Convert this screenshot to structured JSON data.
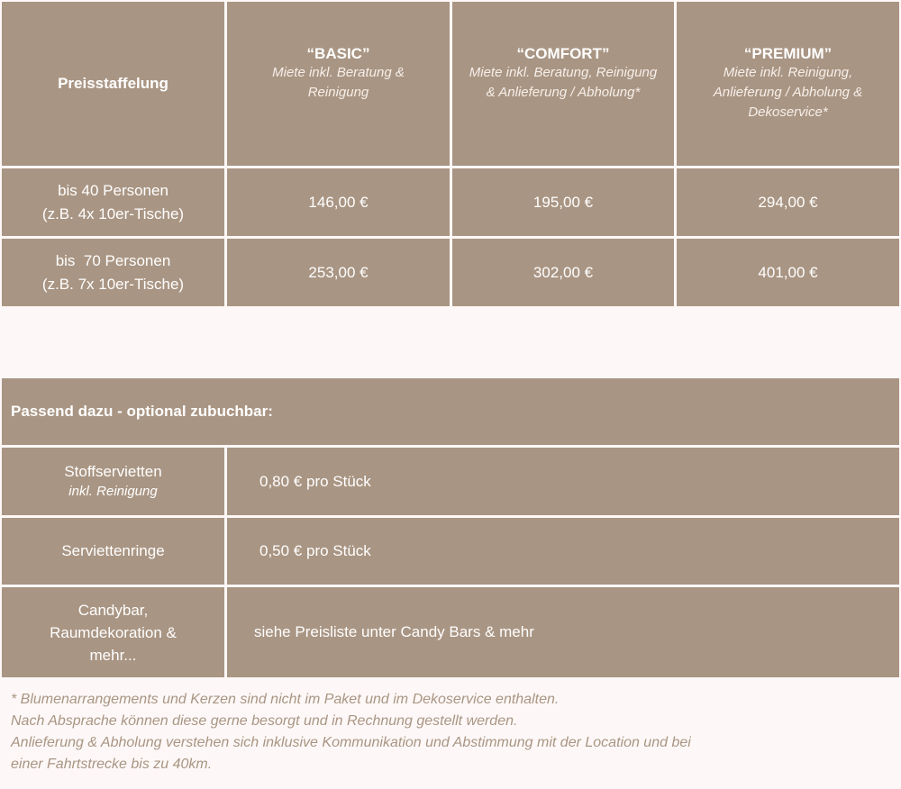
{
  "pricing_table": {
    "header": {
      "label": "Preisstaffelung",
      "packages": [
        {
          "name": "“BASIC”",
          "desc": "Miete inkl. Beratung & Reinigung"
        },
        {
          "name": "“COMFORT”",
          "desc": "Miete inkl. Beratung, Reinigung & Anlieferung / Abholung*"
        },
        {
          "name": "“PREMIUM”",
          "desc": "Miete inkl. Reinigung, Anlieferung / Abholung & Dekoservice*"
        }
      ]
    },
    "rows": [
      {
        "line1": "bis 40 Personen",
        "line2": "(z.B. 4x 10er-Tische)",
        "prices": [
          "146,00 €",
          "195,00 €",
          "294,00 €"
        ]
      },
      {
        "line1": "bis  70 Personen",
        "line2": "(z.B. 7x 10er-Tische)",
        "prices": [
          "253,00 €",
          "302,00 €",
          "401,00 €"
        ]
      }
    ]
  },
  "addons_table": {
    "title": "Passend dazu - optional zubuchbar:",
    "rows": [
      {
        "item": "Stoffservietten",
        "note": "inkl. Reinigung",
        "price": "0,80 € pro Stück"
      },
      {
        "item": "Serviettenringe",
        "note": "",
        "price": "0,50 € pro Stück"
      },
      {
        "item": "Candybar, Raumdekoration & mehr...",
        "note": "",
        "price": "siehe Preisliste unter Candy Bars & mehr"
      }
    ]
  },
  "footnotes": [
    "* Blumenarrangements und Kerzen sind nicht im Paket und im Dekoservice enthalten.",
    "Nach Absprache können diese gerne besorgt und in Rechnung gestellt werden.",
    "Anlieferung & Abholung verstehen sich inklusive Kommunikation und Abstimmung mit der Location und bei",
    "einer Fahrtstrecke bis zu 40km."
  ],
  "colors": {
    "cell": "#a99583",
    "background": "#fdf8f7",
    "text": "#ffffff"
  }
}
